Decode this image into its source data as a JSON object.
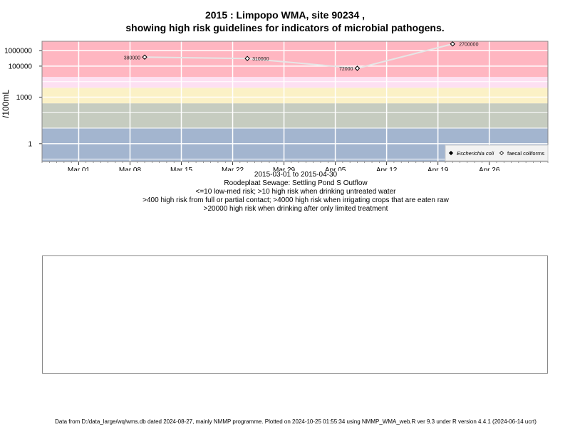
{
  "chart_data": {
    "type": "scatter",
    "title": "2015 : Limpopo WMA, site 90234 ,",
    "subtitle": "showing high risk guidelines for indicators of microbial pathogens.",
    "ylabel": "/100mL",
    "y_scale": "log10",
    "ylim": [
      0.07,
      4000000
    ],
    "xlim": [
      "2015-02-24",
      "2015-05-04"
    ],
    "x_ticks": [
      {
        "date": "2015-03-01",
        "label": "Mar 01"
      },
      {
        "date": "2015-03-08",
        "label": "Mar 08"
      },
      {
        "date": "2015-03-15",
        "label": "Mar 15"
      },
      {
        "date": "2015-03-22",
        "label": "Mar 22"
      },
      {
        "date": "2015-03-29",
        "label": "Mar 29"
      },
      {
        "date": "2015-04-05",
        "label": "Apr 05"
      },
      {
        "date": "2015-04-12",
        "label": "Apr 12"
      },
      {
        "date": "2015-04-19",
        "label": "Apr 19"
      },
      {
        "date": "2015-04-26",
        "label": "Apr 26"
      }
    ],
    "y_ticks": [
      {
        "value": 1,
        "label": "1"
      },
      {
        "value": 1000,
        "label": "1000"
      },
      {
        "value": 100000,
        "label": "100000"
      },
      {
        "value": 1000000,
        "label": "1000000"
      }
    ],
    "bands": [
      {
        "from": 0.07,
        "to": 10,
        "color": "#a3b5cf"
      },
      {
        "from": 10,
        "to": 400,
        "color": "#c6ccc0"
      },
      {
        "from": 400,
        "to": 4000,
        "color": "#fbf1c6"
      },
      {
        "from": 4000,
        "to": 20000,
        "color": "#fde0f2"
      },
      {
        "from": 20000,
        "to": 4000000,
        "color": "#ffb6c1"
      }
    ],
    "grid": true,
    "series": [
      {
        "name": "Escherichia coli",
        "marker": "filled-diamond",
        "points": []
      },
      {
        "name": "faecal coliforms",
        "marker": "open-diamond",
        "line_color": "#e6e6e6",
        "points": [
          {
            "x": "2015-03-10",
            "y": 380000,
            "label": "380000"
          },
          {
            "x": "2015-03-24",
            "y": 310000,
            "label": "310000"
          },
          {
            "x": "2015-04-08",
            "y": 72000,
            "label": "72000"
          },
          {
            "x": "2015-04-21",
            "y": 2700000,
            "label": "2700000"
          }
        ]
      }
    ],
    "legend_position": "bottom-right"
  },
  "range_label": "2015-03-01 to 2015-04-30",
  "site_name": "Roodeplaat Sewage: Settling Pond S Outflow",
  "guidelines": [
    "<=10 low-med risk; >10 high risk when drinking untreated water",
    ">400 high risk from full or partial contact; >4000 high risk when irrigating crops that are eaten raw",
    ">20000 high risk when drinking after only limited treatment"
  ],
  "footer": "Data from D:/data_large/wq/wms.db dated 2024-08-27, mainly NMMP programme. Plotted on 2024-10-25 01:55:34 using NMMP_WMA_web.R ver 9.3 under R version 4.4.1 (2024-06-14 ucrt)"
}
